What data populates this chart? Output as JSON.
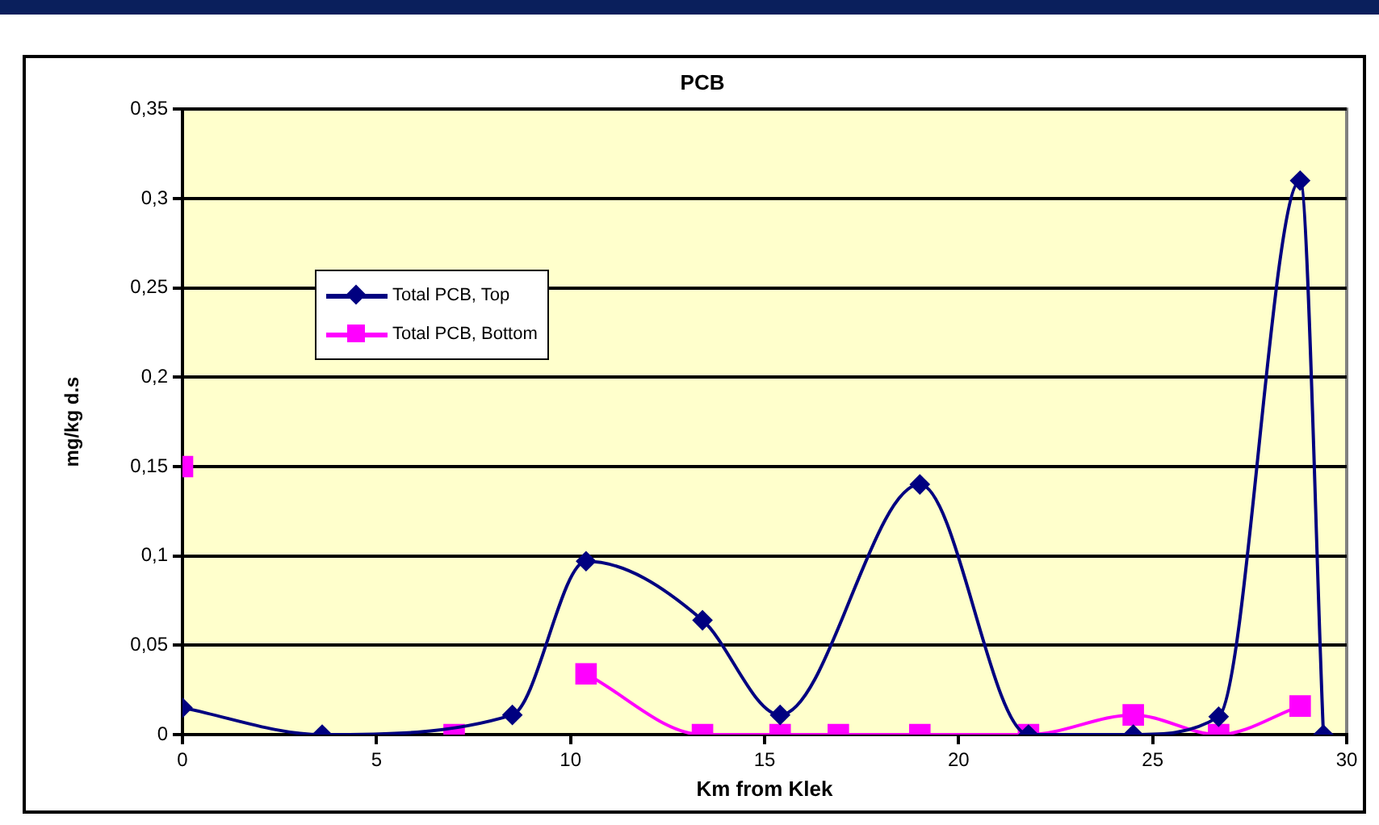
{
  "chart_data": {
    "type": "line",
    "title": "PCB",
    "xlabel": "Km from Klek",
    "ylabel": "mg/kg d.s",
    "xlim": [
      0,
      30
    ],
    "xticks": [
      0,
      5,
      10,
      15,
      20,
      25,
      30
    ],
    "ylim": [
      0,
      0.35
    ],
    "yticks": [
      {
        "value": 0,
        "label": "0"
      },
      {
        "value": 0.05,
        "label": "0,05"
      },
      {
        "value": 0.1,
        "label": "0,1"
      },
      {
        "value": 0.15,
        "label": "0,15"
      },
      {
        "value": 0.2,
        "label": "0,2"
      },
      {
        "value": 0.25,
        "label": "0,25"
      },
      {
        "value": 0.3,
        "label": "0,3"
      },
      {
        "value": 0.35,
        "label": "0,35"
      }
    ],
    "grid": "y",
    "legend": "top left",
    "series": [
      {
        "name": "Total PCB, Top",
        "color": "#000080",
        "marker": "diamond",
        "x": [
          0,
          3.6,
          8.5,
          10.4,
          13.4,
          15.4,
          19.0,
          21.8,
          24.5,
          26.7,
          28.8,
          29.4
        ],
        "values": [
          0.015,
          0,
          0.011,
          0.097,
          0.064,
          0.011,
          0.14,
          0,
          0,
          0.01,
          0.31,
          0
        ]
      },
      {
        "name": "Total PCB, Bottom",
        "color": "#ff00ff",
        "marker": "square",
        "x": [
          0,
          3.6,
          7,
          8.5,
          10.4,
          13.4,
          15.4,
          16.9,
          19.0,
          21.8,
          24.5,
          26.7,
          28.8
        ],
        "values": [
          0.15,
          null,
          0,
          null,
          0.034,
          0,
          0,
          0,
          0,
          0,
          0.011,
          0,
          0.016
        ]
      }
    ]
  }
}
